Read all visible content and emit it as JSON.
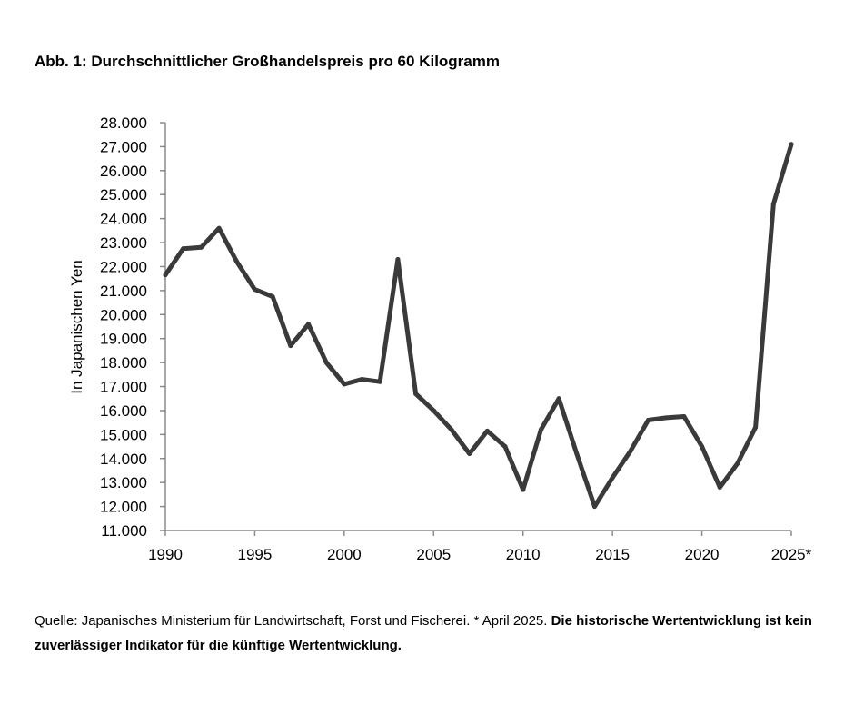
{
  "figure": {
    "title": "Abb. 1: Durchschnittlicher Großhandelspreis pro 60 Kilogramm",
    "source_prefix": "Quelle: Japanisches Ministerium für Landwirtschaft, Forst und Fischerei. * April 2025. ",
    "source_bold": "Die historische Wertentwicklung ist kein zuverlässiger Indikator für die künftige Wertentwicklung."
  },
  "chart_data": {
    "type": "line",
    "title": "Abb. 1: Durchschnittlicher Großhandelspreis pro 60 Kilogramm",
    "xlabel": "",
    "ylabel": "In Japanischen Yen",
    "xlim": [
      1990,
      2025
    ],
    "ylim": [
      11000,
      28000
    ],
    "x_ticks": [
      1990,
      1995,
      2000,
      2005,
      2010,
      2015,
      2020,
      2025
    ],
    "x_tick_labels": [
      "1990",
      "1995",
      "2000",
      "2005",
      "2010",
      "2015",
      "2020",
      "2025*"
    ],
    "y_ticks": [
      11000,
      12000,
      13000,
      14000,
      15000,
      16000,
      17000,
      18000,
      19000,
      20000,
      21000,
      22000,
      23000,
      24000,
      25000,
      26000,
      27000,
      28000
    ],
    "y_tick_labels": [
      "11.000",
      "12.000",
      "13.000",
      "14.000",
      "15.000",
      "16.000",
      "17.000",
      "18.000",
      "19.000",
      "20.000",
      "21.000",
      "22.000",
      "23.000",
      "24.000",
      "25.000",
      "26.000",
      "27.000",
      "28.000"
    ],
    "grid": false,
    "legend": "none",
    "line_color": "#3a3a3a",
    "x": [
      1990,
      1991,
      1992,
      1993,
      1994,
      1995,
      1996,
      1997,
      1998,
      1999,
      2000,
      2001,
      2002,
      2003,
      2004,
      2005,
      2006,
      2007,
      2008,
      2009,
      2010,
      2011,
      2012,
      2013,
      2014,
      2015,
      2016,
      2017,
      2018,
      2019,
      2020,
      2021,
      2022,
      2023,
      2024,
      2025
    ],
    "values": [
      21650,
      22750,
      22800,
      23600,
      22200,
      21050,
      20750,
      18700,
      19600,
      18000,
      17100,
      17300,
      17200,
      22300,
      16700,
      16000,
      15200,
      14200,
      15150,
      14500,
      12700,
      15200,
      16500,
      14200,
      12000,
      13200,
      14300,
      15600,
      15700,
      15750,
      14500,
      12800,
      13800,
      15300,
      24600,
      27100
    ]
  }
}
